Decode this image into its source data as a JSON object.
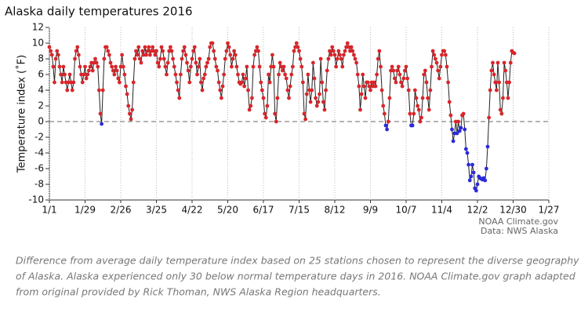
{
  "chart_data": {
    "type": "line",
    "title": "Alaska daily temperatures 2016",
    "y_label": "Temperature index (˚F)",
    "x": [
      "1/1",
      "1/2",
      "1/3",
      "1/4",
      "1/5",
      "1/6",
      "1/7",
      "1/8",
      "1/9",
      "1/10",
      "1/11",
      "1/12",
      "1/13",
      "1/14",
      "1/15",
      "1/16",
      "1/17",
      "1/18",
      "1/19",
      "1/20",
      "1/21",
      "1/22",
      "1/23",
      "1/24",
      "1/25",
      "1/26",
      "1/27",
      "1/28",
      "1/29",
      "1/30",
      "1/31",
      "2/1",
      "2/2",
      "2/3",
      "2/4",
      "2/5",
      "2/6",
      "2/7",
      "2/8",
      "2/9",
      "2/10",
      "2/11",
      "2/12",
      "2/13",
      "2/14",
      "2/15",
      "2/16",
      "2/17",
      "2/18",
      "2/19",
      "2/20",
      "2/21",
      "2/22",
      "2/23",
      "2/24",
      "2/25",
      "2/26",
      "2/27",
      "2/28",
      "2/29",
      "3/1",
      "3/2",
      "3/3",
      "3/4",
      "3/5",
      "3/6",
      "3/7",
      "3/8",
      "3/9",
      "3/10",
      "3/11",
      "3/12",
      "3/13",
      "3/14",
      "3/15",
      "3/16",
      "3/17",
      "3/18",
      "3/19",
      "3/20",
      "3/21",
      "3/22",
      "3/23",
      "3/24",
      "3/25",
      "3/26",
      "3/27",
      "3/28",
      "3/29",
      "3/30",
      "3/31",
      "4/1",
      "4/2",
      "4/3",
      "4/4",
      "4/5",
      "4/6",
      "4/7",
      "4/8",
      "4/9",
      "4/10",
      "4/11",
      "4/12",
      "4/13",
      "4/14",
      "4/15",
      "4/16",
      "4/17",
      "4/18",
      "4/19",
      "4/20",
      "4/21",
      "4/22",
      "4/23",
      "4/24",
      "4/25",
      "4/26",
      "4/27",
      "4/28",
      "4/29",
      "4/30",
      "5/1",
      "5/2",
      "5/3",
      "5/4",
      "5/5",
      "5/6",
      "5/7",
      "5/8",
      "5/9",
      "5/10",
      "5/11",
      "5/12",
      "5/13",
      "5/14",
      "5/15",
      "5/16",
      "5/17",
      "5/18",
      "5/19",
      "5/20",
      "5/21",
      "5/22",
      "5/23",
      "5/24",
      "5/25",
      "5/26",
      "5/27",
      "5/28",
      "5/29",
      "5/30",
      "5/31",
      "6/1",
      "6/2",
      "6/3",
      "6/4",
      "6/5",
      "6/6",
      "6/7",
      "6/8",
      "6/9",
      "6/10",
      "6/11",
      "6/12",
      "6/13",
      "6/14",
      "6/15",
      "6/16",
      "6/17",
      "6/18",
      "6/19",
      "6/20",
      "6/21",
      "6/22",
      "6/23",
      "6/24",
      "6/25",
      "6/26",
      "6/27",
      "6/28",
      "6/29",
      "6/30",
      "7/1",
      "7/2",
      "7/3",
      "7/4",
      "7/5",
      "7/6",
      "7/7",
      "7/8",
      "7/9",
      "7/10",
      "7/11",
      "7/12",
      "7/13",
      "7/14",
      "7/15",
      "7/16",
      "7/17",
      "7/18",
      "7/19",
      "7/20",
      "7/21",
      "7/22",
      "7/23",
      "7/24",
      "7/25",
      "7/26",
      "7/27",
      "7/28",
      "7/29",
      "7/30",
      "7/31",
      "8/1",
      "8/2",
      "8/3",
      "8/4",
      "8/5",
      "8/6",
      "8/7",
      "8/8",
      "8/9",
      "8/10",
      "8/11",
      "8/12",
      "8/13",
      "8/14",
      "8/15",
      "8/16",
      "8/17",
      "8/18",
      "8/19",
      "8/20",
      "8/21",
      "8/22",
      "8/23",
      "8/24",
      "8/25",
      "8/26",
      "8/27",
      "8/28",
      "8/29",
      "8/30",
      "8/31",
      "9/1",
      "9/2",
      "9/3",
      "9/4",
      "9/5",
      "9/6",
      "9/7",
      "9/8",
      "9/9",
      "9/10",
      "9/11",
      "9/12",
      "9/13",
      "9/14",
      "9/15",
      "9/16",
      "9/17",
      "9/18",
      "9/19",
      "9/20",
      "9/21",
      "9/22",
      "9/23",
      "9/24",
      "9/25",
      "9/26",
      "9/27",
      "9/28",
      "9/29",
      "9/30",
      "10/1",
      "10/2",
      "10/3",
      "10/4",
      "10/5",
      "10/6",
      "10/7",
      "10/8",
      "10/9",
      "10/10",
      "10/11",
      "10/12",
      "10/13",
      "10/14",
      "10/15",
      "10/16",
      "10/17",
      "10/18",
      "10/19",
      "10/20",
      "10/21",
      "10/22",
      "10/23",
      "10/24",
      "10/25",
      "10/26",
      "10/27",
      "10/28",
      "10/29",
      "10/30",
      "10/31",
      "11/1",
      "11/2",
      "11/3",
      "11/4",
      "11/5",
      "11/6",
      "11/7",
      "11/8",
      "11/9",
      "11/10",
      "11/11",
      "11/12",
      "11/13",
      "11/14",
      "11/15",
      "11/16",
      "11/17",
      "11/18",
      "11/19",
      "11/20",
      "11/21",
      "11/22",
      "11/23",
      "11/24",
      "11/25",
      "11/26",
      "11/27",
      "11/28",
      "11/29",
      "11/30",
      "12/1",
      "12/2",
      "12/3",
      "12/4",
      "12/5",
      "12/6",
      "12/7",
      "12/8",
      "12/9",
      "12/10",
      "12/11",
      "12/12",
      "12/13",
      "12/14",
      "12/15",
      "12/16",
      "12/17",
      "12/18",
      "12/19",
      "12/20",
      "12/21",
      "12/22",
      "12/23",
      "12/24",
      "12/25",
      "12/26",
      "12/27",
      "12/28",
      "12/29",
      "12/30",
      "12/31"
    ],
    "values": [
      9.5,
      9,
      8.5,
      7,
      5,
      8,
      9,
      8.5,
      7,
      6,
      5,
      7,
      6,
      5,
      4,
      5,
      6,
      5,
      4,
      5,
      8,
      9,
      9.5,
      8.5,
      7,
      6,
      5,
      6,
      7,
      5.5,
      6,
      6.5,
      7,
      7.5,
      6.5,
      7.5,
      8,
      7.5,
      7,
      4,
      1,
      -0.3,
      4,
      8,
      9.5,
      9.5,
      9,
      8.5,
      7.5,
      7,
      6.5,
      6,
      7,
      6.5,
      5.5,
      5,
      7,
      8.5,
      7,
      6,
      4.5,
      3.5,
      2,
      1,
      0.3,
      1.5,
      5,
      8,
      9,
      8.5,
      9.5,
      8,
      7.5,
      9,
      8.5,
      9.5,
      8.5,
      9,
      9.5,
      8.5,
      9,
      9.5,
      9,
      8.5,
      9,
      7.5,
      7,
      8,
      9.5,
      9,
      8,
      7,
      6,
      7.5,
      9,
      9.5,
      9,
      8,
      7,
      6,
      5,
      4,
      3,
      6,
      8,
      9,
      9.5,
      8.5,
      7.5,
      6.5,
      5,
      7,
      8,
      9,
      9.5,
      7.5,
      6,
      7,
      8,
      5,
      4,
      5.5,
      6,
      7,
      7.5,
      8,
      9.5,
      10,
      10,
      9,
      8,
      7,
      6.5,
      5,
      4,
      3,
      4.5,
      6,
      8,
      9,
      10,
      9.5,
      8.5,
      7,
      8,
      9,
      8.5,
      7,
      6,
      5,
      4.8,
      5,
      6,
      4.5,
      5.5,
      7,
      4,
      1.5,
      2,
      3,
      7,
      8.5,
      9,
      9.5,
      9,
      7,
      5,
      4,
      3,
      1,
      0.5,
      2,
      6,
      5,
      7,
      8.5,
      7,
      1,
      0,
      3,
      6,
      7.5,
      7,
      6.5,
      7,
      6,
      5.5,
      4,
      3,
      4.5,
      6,
      7,
      9,
      9.5,
      10,
      9.5,
      9,
      8,
      7,
      5,
      1,
      0.3,
      3.5,
      6,
      4,
      2.5,
      4,
      7.5,
      5.5,
      3,
      2,
      2.5,
      3.5,
      8,
      5,
      2.5,
      1.5,
      4,
      6.5,
      8,
      9,
      8.5,
      9.5,
      9,
      8.5,
      7,
      8,
      9,
      8.5,
      8,
      7,
      8.5,
      9,
      9.5,
      10,
      9.5,
      9,
      9.5,
      9,
      8.5,
      8,
      7.5,
      6,
      4.5,
      1.5,
      3.5,
      6,
      4.5,
      3,
      5,
      5,
      4.5,
      4,
      5,
      4.5,
      5,
      4.5,
      6,
      8,
      9,
      7,
      4,
      2,
      1,
      -0.5,
      -1,
      0,
      3,
      6.5,
      7,
      6.5,
      5.5,
      5,
      6.5,
      7,
      6,
      5,
      4.5,
      5.5,
      6.5,
      7,
      5.5,
      4,
      1,
      -0.5,
      -0.5,
      1,
      4,
      3,
      2,
      1.5,
      0,
      0.5,
      3,
      6,
      6.5,
      5,
      3,
      1.5,
      4,
      7,
      9,
      8.5,
      8,
      7.5,
      6.5,
      5.5,
      7,
      8.5,
      9,
      9,
      8.5,
      7,
      5,
      2.5,
      0.8,
      -1,
      -2.5,
      -1.5,
      0,
      -1.5,
      0,
      -1.2,
      -0.8,
      0.8,
      1,
      -1,
      -3.5,
      -4,
      -5.5,
      -7.5,
      -7,
      -5.5,
      -6.5,
      -8.5,
      -8.8,
      -8,
      -7,
      -7.2,
      -7.3,
      -7.4,
      -7.2,
      -7.5,
      -6,
      -3.2,
      0.5,
      4,
      6.5,
      7.5,
      6,
      5,
      4,
      7.5,
      5,
      1.5,
      1,
      3,
      7.5,
      6.5,
      5,
      3,
      5,
      7.5,
      9,
      8.8,
      8.7
    ],
    "line_color": "#222222",
    "above_color": "#d9262b",
    "below_color": "#2b2bdc",
    "xlim": [
      "1/1",
      "1/27"
    ],
    "xticks": [
      "1/1",
      "1/29",
      "2/26",
      "3/25",
      "4/22",
      "5/20",
      "6/17",
      "7/15",
      "8/12",
      "9/9",
      "10/7",
      "11/4",
      "12/2",
      "12/30",
      "1/27"
    ],
    "ylim": [
      -10,
      12
    ],
    "yticks": [
      12,
      10,
      8,
      6,
      4,
      2,
      0,
      -2,
      -4,
      -6,
      -8,
      -10
    ],
    "reference_line": 0,
    "grid": "x",
    "source": [
      "NOAA Climate.gov",
      "Data:  NWS Alaska"
    ],
    "caption": [
      "Difference from average daily temperature index based on 25 stations chosen to represent the diverse geography",
      "of Alaska. Alaska experienced only 30 below normal temperature days in 2016. NOAA Climate.gov graph adapted",
      "from original provided by Rick Thoman, NWS Alaska Region headquarters."
    ]
  }
}
